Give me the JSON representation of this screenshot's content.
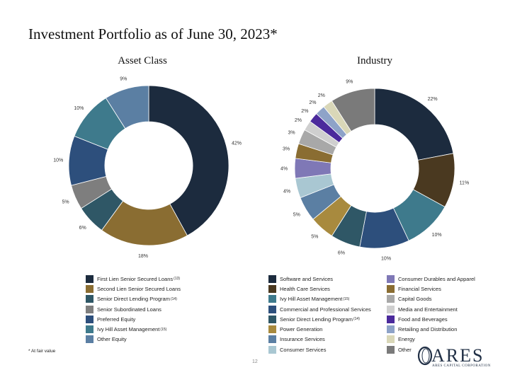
{
  "title": "Investment Portfolio as of June 30, 2023*",
  "footnote": "* At fair value",
  "page_number": "12",
  "logo": {
    "word": "ARES",
    "sub": "ARES CAPITAL CORPORATION"
  },
  "chart_data": [
    {
      "type": "pie",
      "title": "Asset Class",
      "label_suffix": "%",
      "slices": [
        {
          "label": "First Lien Senior Secured Loans",
          "note": "(13)",
          "value": 42,
          "color": "#1c2b3e"
        },
        {
          "label": "Second Lien Senior Secured Loans",
          "note": "",
          "value": 18,
          "color": "#8a6d32"
        },
        {
          "label": "Senior Direct Lending Program",
          "note": "(14)",
          "value": 6,
          "color": "#2f5766"
        },
        {
          "label": "Senior Subordinated Loans",
          "note": "",
          "value": 5,
          "color": "#7e7e7e"
        },
        {
          "label": "Preferred Equity",
          "note": "",
          "value": 10,
          "color": "#2d4f7c"
        },
        {
          "label": "Ivy Hill Asset Management",
          "note": "(15)",
          "value": 10,
          "color": "#3e7a8c"
        },
        {
          "label": "Other Equity",
          "note": "",
          "value": 9,
          "color": "#5b7fa3"
        }
      ]
    },
    {
      "type": "pie",
      "title": "Industry",
      "label_suffix": "%",
      "slices": [
        {
          "label": "Software and Services",
          "note": "",
          "value": 22,
          "color": "#1c2b3e"
        },
        {
          "label": "Health Care Services",
          "note": "",
          "value": 11,
          "color": "#4a3920"
        },
        {
          "label": "Ivy Hill Asset Management",
          "note": "(15)",
          "value": 10,
          "color": "#3e7a8c"
        },
        {
          "label": "Commercial and Professional Services",
          "note": "",
          "value": 10,
          "color": "#2d4f7c"
        },
        {
          "label": "Senior Direct Lending Program",
          "note": "(14)",
          "value": 6,
          "color": "#2f5766"
        },
        {
          "label": "Power Generation",
          "note": "",
          "value": 5,
          "color": "#a88a3e"
        },
        {
          "label": "Insurance Services",
          "note": "",
          "value": 5,
          "color": "#5b7fa3"
        },
        {
          "label": "Consumer Services",
          "note": "",
          "value": 4,
          "color": "#a9c7d2"
        },
        {
          "label": "Consumer Durables and Apparel",
          "note": "",
          "value": 4,
          "color": "#7f78b6"
        },
        {
          "label": "Financial Services",
          "note": "",
          "value": 3,
          "color": "#8a6d32"
        },
        {
          "label": "Capital Goods",
          "note": "",
          "value": 3,
          "color": "#a8a8a8"
        },
        {
          "label": "Media and Entertainment",
          "note": "",
          "value": 2,
          "color": "#cfcfcf"
        },
        {
          "label": "Food and Beverages",
          "note": "",
          "value": 2,
          "color": "#4b2a9c"
        },
        {
          "label": "Retailing and Distribution",
          "note": "",
          "value": 2,
          "color": "#8ea3c8"
        },
        {
          "label": "Energy",
          "note": "",
          "value": 2,
          "color": "#d9d7b8"
        },
        {
          "label": "Other",
          "note": "",
          "value": 9,
          "color": "#7a7a7a"
        }
      ]
    }
  ]
}
